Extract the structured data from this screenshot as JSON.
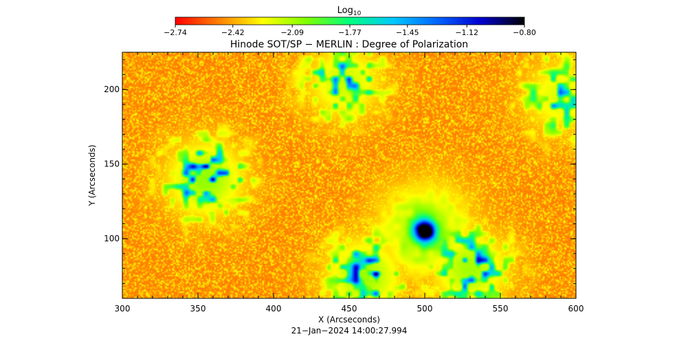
{
  "chart_data": {
    "type": "heatmap",
    "title": "Hinode SOT/SP − MERLIN : Degree of Polarization",
    "xlabel": "X (Arcseconds)",
    "ylabel": "Y (Arcseconds)",
    "xlim": [
      300,
      600
    ],
    "ylim": [
      60,
      225
    ],
    "xticks": [
      300,
      350,
      400,
      450,
      500,
      550,
      600
    ],
    "xtick_labels": [
      "300",
      "350",
      "400",
      "450",
      "500",
      "550",
      "600"
    ],
    "yticks": [
      100,
      150,
      200
    ],
    "ytick_labels": [
      "100",
      "150",
      "200"
    ],
    "timestamp": "21−Jan−2024 14:00:27.994",
    "colorbar": {
      "label_base": "Log",
      "label_sub": "10",
      "orientation": "horizontal",
      "placement": "top",
      "range": [
        -2.74,
        -0.8
      ],
      "ticks": [
        -2.74,
        -2.42,
        -2.09,
        -1.77,
        -1.45,
        -1.12,
        -0.8
      ],
      "tick_labels": [
        "−2.74",
        "−2.42",
        "−2.09",
        "−1.77",
        "−1.45",
        "−1.12",
        "−0.80"
      ],
      "colormap_stops": [
        "#ff0000",
        "#ff8000",
        "#ffff00",
        "#80ff00",
        "#00ff80",
        "#00c8ff",
        "#0064ff",
        "#0000d0",
        "#000000"
      ]
    },
    "background_value": -2.5,
    "features": [
      {
        "label": "polarization concentration",
        "x": 500,
        "y": 105,
        "peak_value": -0.85
      },
      {
        "label": "network patch",
        "x": 355,
        "y": 140,
        "peak_value": -1.2
      },
      {
        "label": "network patch",
        "x": 460,
        "y": 75,
        "peak_value": -1.25
      },
      {
        "label": "network patch",
        "x": 530,
        "y": 80,
        "peak_value": -1.3
      },
      {
        "label": "network patch",
        "x": 447,
        "y": 205,
        "peak_value": -1.5
      },
      {
        "label": "network patch",
        "x": 590,
        "y": 195,
        "peak_value": -1.6
      }
    ]
  }
}
